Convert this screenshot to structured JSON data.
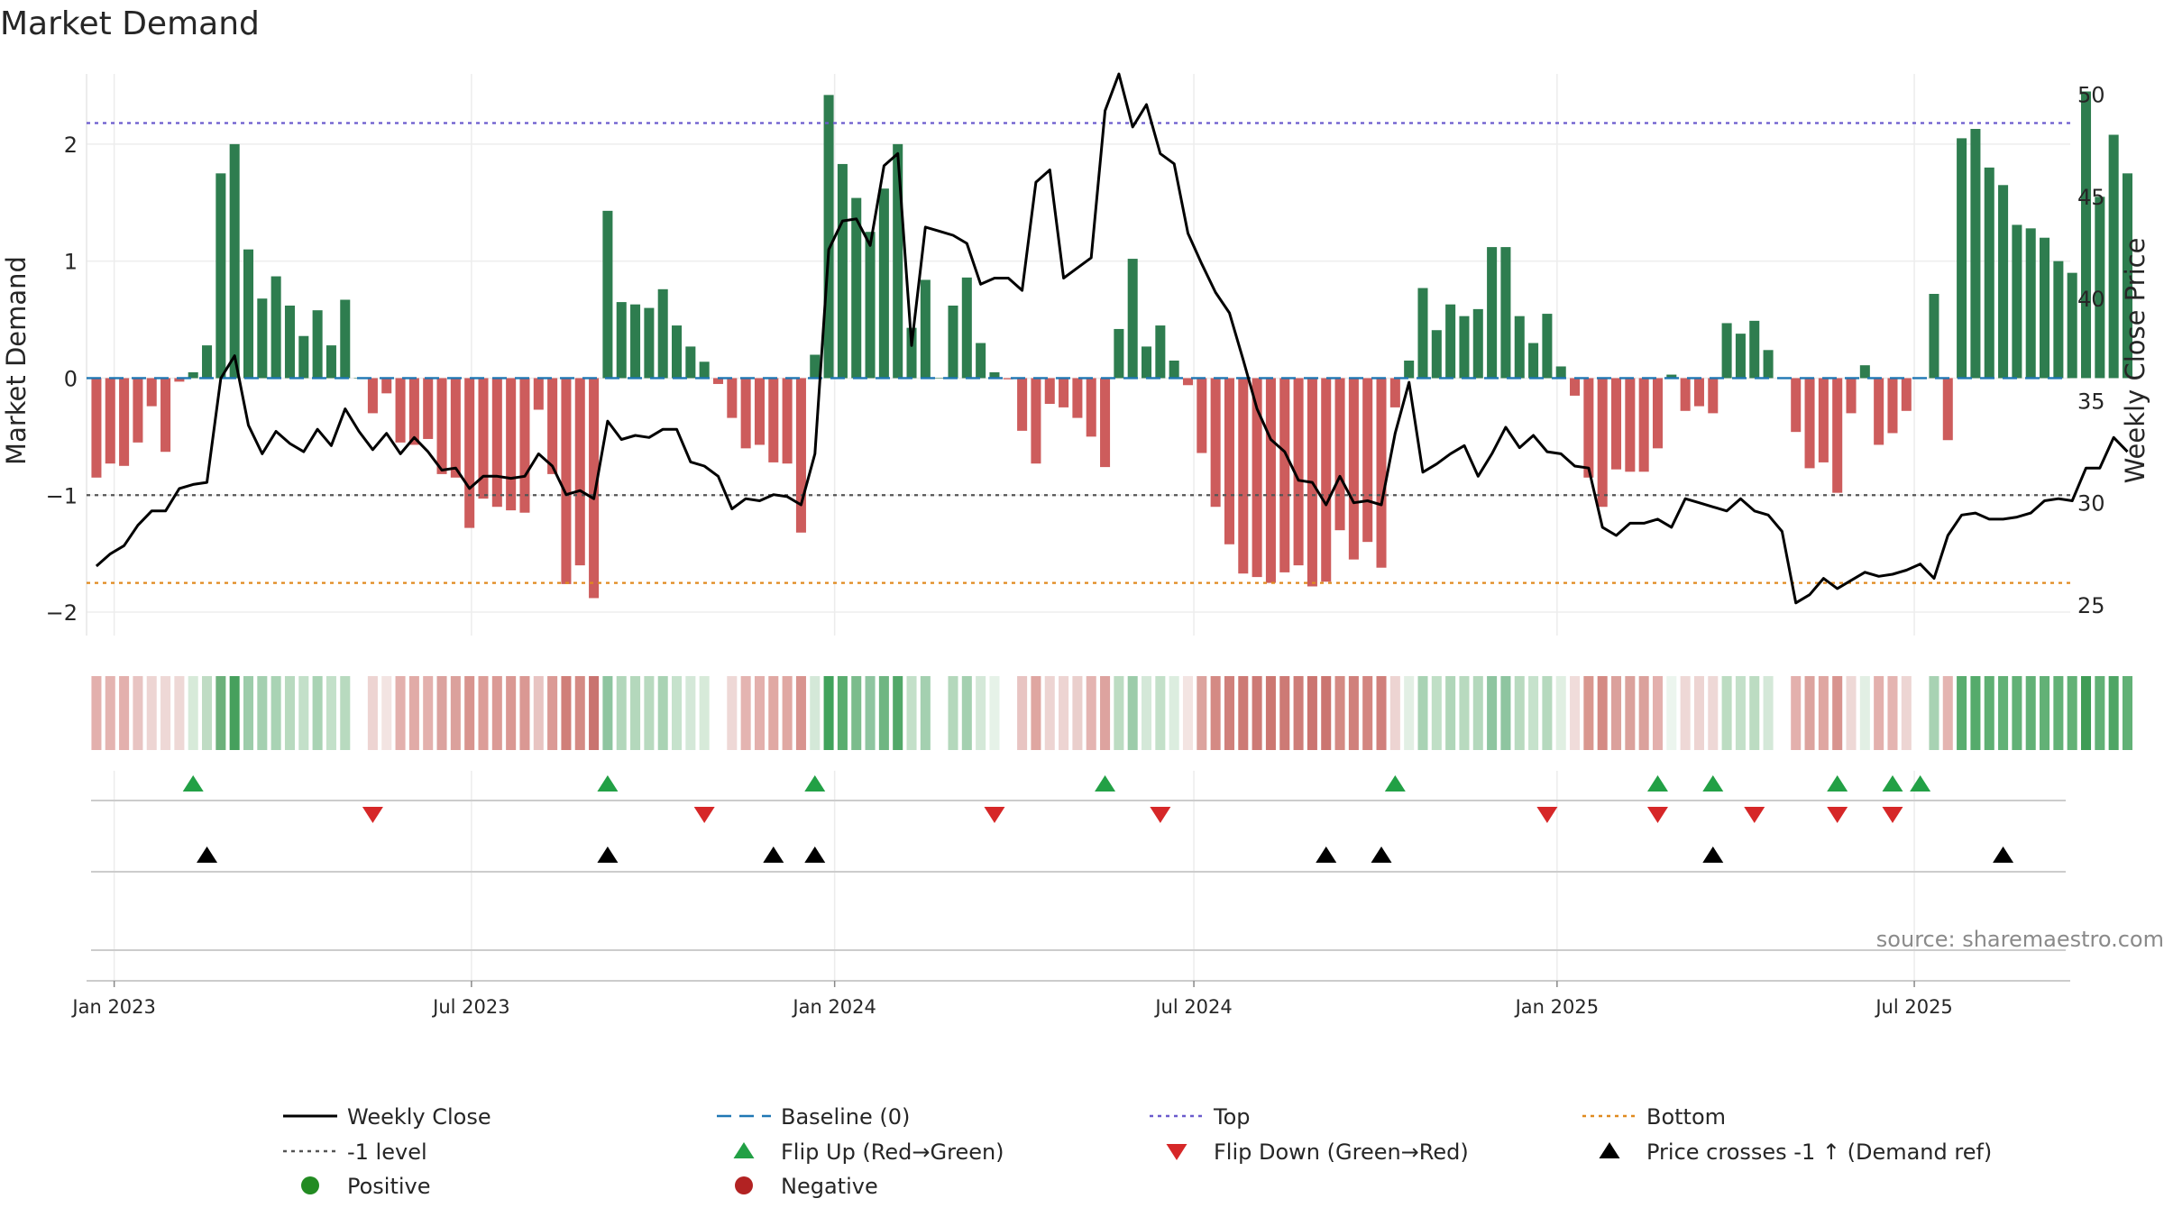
{
  "title": "Market Demand",
  "source": "source: sharemaestro.com",
  "colors": {
    "positive": "#2e7d4f",
    "negative": "#cd5c5c",
    "close": "#000000",
    "baseline": "#1f77b4",
    "top": "#6a5acd",
    "bottom": "#e08a1e",
    "minus1": "#555555",
    "flip_up": "#22a045",
    "flip_down": "#d62728",
    "cross": "#000000",
    "positive_dot": "#228b22",
    "negative_dot": "#b22222"
  },
  "chart_data": {
    "type": "bar",
    "title": "Market Demand",
    "ylabel": "Market Demand",
    "y2label": "Weekly Close Price",
    "ylim": [
      -2.2,
      2.6
    ],
    "y2lim": [
      23.5,
      51
    ],
    "yticks": [
      -2,
      -1,
      0,
      1,
      2
    ],
    "y2ticks": [
      25,
      30,
      35,
      40,
      45,
      50
    ],
    "x_start": "2022-12-23",
    "x_step_days": 7,
    "xlim": [
      "2022-12-18",
      "2025-09-18"
    ],
    "x_tick_labels": [
      {
        "label": "Jan 2023",
        "date": "2023-01-01"
      },
      {
        "label": "Jul 2023",
        "date": "2023-07-01"
      },
      {
        "label": "Jan 2024",
        "date": "2024-01-01"
      },
      {
        "label": "Jul 2024",
        "date": "2024-07-01"
      },
      {
        "label": "Jan 2025",
        "date": "2025-01-01"
      },
      {
        "label": "Jul 2025",
        "date": "2025-07-01"
      }
    ],
    "levels": {
      "baseline": 0,
      "top": 2.18,
      "minus1": -1,
      "bottom": -1.75
    },
    "demand": [
      -0.85,
      -0.73,
      -0.75,
      -0.55,
      -0.24,
      -0.63,
      -0.03,
      0.05,
      0.28,
      1.75,
      2.0,
      1.1,
      0.68,
      0.87,
      0.62,
      0.36,
      0.58,
      0.28,
      0.67,
      0.0,
      -0.3,
      -0.13,
      -0.55,
      -0.57,
      -0.52,
      -0.82,
      -0.85,
      -1.28,
      -1.03,
      -1.1,
      -1.13,
      -1.15,
      -0.27,
      -0.82,
      -1.76,
      -1.6,
      -1.88,
      1.43,
      0.65,
      0.63,
      0.6,
      0.76,
      0.45,
      0.27,
      0.14,
      -0.05,
      -0.34,
      -0.6,
      -0.57,
      -0.72,
      -0.73,
      -1.32,
      0.2,
      2.42,
      1.83,
      1.54,
      1.25,
      1.62,
      2.0,
      0.43,
      0.84,
      0.0,
      0.62,
      0.86,
      0.3,
      0.05,
      -0.01,
      -0.45,
      -0.73,
      -0.22,
      -0.25,
      -0.34,
      -0.5,
      -0.76,
      0.42,
      1.02,
      0.27,
      0.45,
      0.15,
      -0.06,
      -0.64,
      -1.1,
      -1.42,
      -1.67,
      -1.7,
      -1.75,
      -1.66,
      -1.6,
      -1.78,
      -1.74,
      -1.3,
      -1.55,
      -1.4,
      -1.62,
      -0.25,
      0.15,
      0.77,
      0.41,
      0.63,
      0.53,
      0.59,
      1.12,
      1.12,
      0.53,
      0.3,
      0.55,
      0.1,
      -0.15,
      -0.85,
      -1.1,
      -0.78,
      -0.8,
      -0.8,
      -0.6,
      0.03,
      -0.28,
      -0.24,
      -0.3,
      0.47,
      0.38,
      0.49,
      0.24,
      0.0,
      -0.46,
      -0.77,
      -0.72,
      -0.98,
      -0.3,
      0.11,
      -0.57,
      -0.47,
      -0.28,
      0.0,
      0.72,
      -0.53,
      2.05,
      2.13,
      1.8,
      1.65,
      1.31,
      1.28,
      1.2,
      1.0,
      0.9,
      2.45,
      1.55,
      2.08,
      1.75
    ],
    "close": [
      26.9,
      27.5,
      27.9,
      28.9,
      29.6,
      29.6,
      30.7,
      30.9,
      31.0,
      36.1,
      37.2,
      33.8,
      32.4,
      33.5,
      32.9,
      32.5,
      33.6,
      32.8,
      34.6,
      33.5,
      32.6,
      33.4,
      32.4,
      33.2,
      32.5,
      31.6,
      31.7,
      30.7,
      31.3,
      31.3,
      31.2,
      31.3,
      32.4,
      31.8,
      30.4,
      30.6,
      30.2,
      34.0,
      33.1,
      33.3,
      33.2,
      33.6,
      33.6,
      32.0,
      31.8,
      31.3,
      29.7,
      30.2,
      30.1,
      30.4,
      30.3,
      29.9,
      32.4,
      42.4,
      43.8,
      43.9,
      42.6,
      46.5,
      47.1,
      37.7,
      43.5,
      43.3,
      43.1,
      42.7,
      40.7,
      41.0,
      41.0,
      40.4,
      45.7,
      46.3,
      41.0,
      41.5,
      42.0,
      49.2,
      51.0,
      48.4,
      49.5,
      47.1,
      46.6,
      43.2,
      41.7,
      40.3,
      39.3,
      37.0,
      34.6,
      33.1,
      32.5,
      31.1,
      31.0,
      29.9,
      31.3,
      30.0,
      30.1,
      29.9,
      33.4,
      35.9,
      31.5,
      31.9,
      32.4,
      32.8,
      31.3,
      32.4,
      33.7,
      32.7,
      33.3,
      32.5,
      32.4,
      31.8,
      31.7,
      28.8,
      28.4,
      29.0,
      29.0,
      29.2,
      28.8,
      30.2,
      30.0,
      29.8,
      29.6,
      30.2,
      29.6,
      29.4,
      28.6,
      25.1,
      25.5,
      26.3,
      25.8,
      26.2,
      26.6,
      26.4,
      26.5,
      26.7,
      27.0,
      26.3,
      28.4,
      29.4,
      29.5,
      29.2,
      29.2,
      29.3,
      29.5,
      30.1,
      30.2,
      30.1,
      31.7,
      31.7,
      33.2,
      32.5
    ],
    "regime_shades": [
      "#e3b0ad",
      "#e4b4b1",
      "#e3b0ad",
      "#e8c4c2",
      "#edd5d3",
      "#eed8d6",
      "#eed8d6",
      "#d7ead9",
      "#bfdcc4",
      "#6cb17b",
      "#46a05d",
      "#9cccaa",
      "#a4d0b0",
      "#a9d3b4",
      "#b8dabf",
      "#c3e0c9",
      "#a9d3b4",
      "#c3e0c9",
      "#b8dabf",
      "#ffffff",
      "#edd4d2",
      "#f3e4e2",
      "#e3b0ad",
      "#e1aba7",
      "#e3b0ad",
      "#dba29e",
      "#dba19c",
      "#d8948f",
      "#dc9d98",
      "#db9a95",
      "#da9893",
      "#da9893",
      "#e8c4c2",
      "#db9a95",
      "#d07f79",
      "#d48a84",
      "#c97370",
      "#8ec5a0",
      "#b2d7bb",
      "#b4d8bc",
      "#b8dabf",
      "#a9d3b4",
      "#c6e2cc",
      "#d4e8d8",
      "#d7ead9",
      "#ffffff",
      "#eed8d6",
      "#e4b4b1",
      "#e3b0ad",
      "#e0a8a3",
      "#e0a8a3",
      "#d8948f",
      "#d4e8d8",
      "#41a35c",
      "#5aad6f",
      "#7bbc8c",
      "#8ec5a0",
      "#6fb682",
      "#52a869",
      "#c3e0c9",
      "#a4d0b0",
      "#ffffff",
      "#b4d8bc",
      "#a4d0b0",
      "#d4e8d8",
      "#e6f2e8",
      "#ffffff",
      "#e8c4c2",
      "#dfa6a1",
      "#edd4d2",
      "#edd4d2",
      "#eacfcc",
      "#e4b4b1",
      "#dda39f",
      "#bcdcc2",
      "#9cccaa",
      "#d4e8d8",
      "#c3e0c9",
      "#dceddf",
      "#f3e4e2",
      "#dca39e",
      "#d48a84",
      "#d0807b",
      "#cd7a75",
      "#cd7a75",
      "#cc7771",
      "#cd7a75",
      "#ce7d78",
      "#cb7570",
      "#cb7570",
      "#d48a84",
      "#d0807b",
      "#d38680",
      "#d0807b",
      "#edd4d2",
      "#e2efe4",
      "#a9d3b4",
      "#c0dfc6",
      "#b0d6b9",
      "#b8dabf",
      "#b4d8bc",
      "#8ec5a0",
      "#8ec5a0",
      "#b8dabf",
      "#c6e2cc",
      "#b6d9be",
      "#e0efe2",
      "#f0dcda",
      "#d9978f",
      "#d48a84",
      "#dba19c",
      "#dba19c",
      "#dba19c",
      "#e3b0ad",
      "#ecf5ee",
      "#eed8d6",
      "#edd4d2",
      "#eed8d6",
      "#bcdcc2",
      "#c3e0c9",
      "#bcdcc2",
      "#d4e8d8",
      "#ffffff",
      "#e3b0ad",
      "#dca39e",
      "#dfa6a1",
      "#d8948f",
      "#eed8d6",
      "#e2efe4",
      "#e3b0ad",
      "#e4b4b1",
      "#edd5d3",
      "#ffffff",
      "#a8d2b3",
      "#e4b4b1",
      "#5aad6f",
      "#55ab6b",
      "#5fb073",
      "#62b176",
      "#62b176",
      "#62b176",
      "#62b176",
      "#62b176",
      "#62b176",
      "#3f9c56",
      "#62b176",
      "#4ea565",
      "#62b176"
    ],
    "flip_up_idx": [
      7,
      37,
      52,
      73,
      94,
      113,
      117,
      126,
      130,
      132
    ],
    "flip_down_idx": [
      20,
      44,
      65,
      77,
      105,
      113,
      120,
      126,
      130
    ],
    "cross_up_idx": [
      8,
      37,
      49,
      52,
      89,
      93,
      117,
      138
    ],
    "legend": [
      {
        "label": "Weekly Close",
        "kind": "line-solid",
        "color": "#000000"
      },
      {
        "label": "Baseline (0)",
        "kind": "line-dash",
        "color": "#1f77b4"
      },
      {
        "label": "Top",
        "kind": "line-dot",
        "color": "#6a5acd"
      },
      {
        "label": "Bottom",
        "kind": "line-dot",
        "color": "#e08a1e"
      },
      {
        "label": "-1 level",
        "kind": "line-dot",
        "color": "#555555"
      },
      {
        "label": "Flip Up (Red→Green)",
        "kind": "tri-up",
        "color": "#22a045"
      },
      {
        "label": "Flip Down (Green→Red)",
        "kind": "tri-down",
        "color": "#d62728"
      },
      {
        "label": "Price crosses -1 ↑ (Demand ref)",
        "kind": "tri-up",
        "color": "#000000"
      },
      {
        "label": "Positive",
        "kind": "dot",
        "color": "#228b22"
      },
      {
        "label": "Negative",
        "kind": "dot",
        "color": "#b22222"
      }
    ]
  }
}
